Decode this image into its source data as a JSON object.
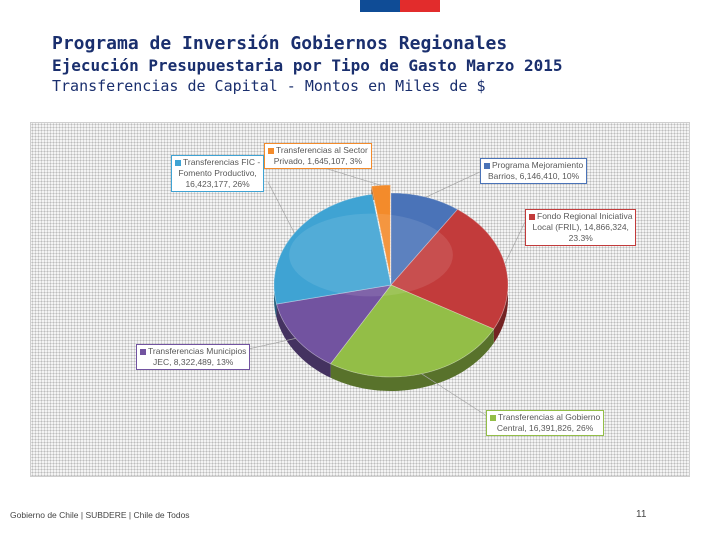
{
  "header": {
    "title": "Programa de Inversión Gobiernos Regionales",
    "subtitle1": "Ejecución Presupuestaria por Tipo de Gasto Marzo 2015",
    "subtitle2": "Transferencias de Capital - Montos en Miles de $"
  },
  "brand_bar": {
    "colors": [
      "#0f4c96",
      "#e22c2c"
    ]
  },
  "chart_data": {
    "type": "pie",
    "title": "",
    "series": [
      {
        "name": "Programa Mejoramiento Barrios",
        "value": 6146410,
        "value_label": "6,146,410",
        "percent_label": "10%",
        "color": "#4a73b8"
      },
      {
        "name": "Fondo Regional Iniciativa Local (FRIL)",
        "value": 14866324,
        "value_label": "14,866,324",
        "percent_label": "23.3%",
        "color": "#c23b3b"
      },
      {
        "name": "Transferencias al Gobierno Central",
        "value": 16391826,
        "value_label": "16,391,826",
        "percent_label": "26%",
        "color": "#93be47"
      },
      {
        "name": "Transferencias Municipios JEC",
        "value": 8322489,
        "value_label": "8,322,489",
        "percent_label": "13%",
        "color": "#7253a0"
      },
      {
        "name": "Transferencias FIC - Fomento Productivo",
        "value": 16423177,
        "value_label": "16,423,177",
        "percent_label": "26%",
        "color": "#3fa3d3"
      },
      {
        "name": "Transferencias al Sector Privado",
        "value": 1645107,
        "value_label": "1,645,107",
        "percent_label": "3%",
        "color": "#f38b2b"
      }
    ],
    "legend": "none",
    "data_labels": true
  },
  "labels": {
    "pmb": {
      "line1": "Programa Mejoramiento",
      "line2": "Barrios, 6,146,410, 10%"
    },
    "fril": {
      "line1": "Fondo Regional Iniciativa",
      "line2": "Local (FRIL), 14,866,324,",
      "line3": "23.3%"
    },
    "gc": {
      "line1": "Transferencias al Gobierno",
      "line2": "Central, 16,391,826, 26%"
    },
    "jec": {
      "line1": "Transferencias Municipios",
      "line2": "JEC, 8,322,489, 13%"
    },
    "fic": {
      "line1": "Transferencias FIC -",
      "line2": "Fomento Productivo,",
      "line3": "16,423,177, 26%"
    },
    "priv": {
      "line1": "Transferencias al Sector",
      "line2": "Privado, 1,645,107, 3%"
    }
  },
  "footer": {
    "text": "Gobierno de Chile | SUBDERE | Chile de Todos",
    "page": "11"
  }
}
